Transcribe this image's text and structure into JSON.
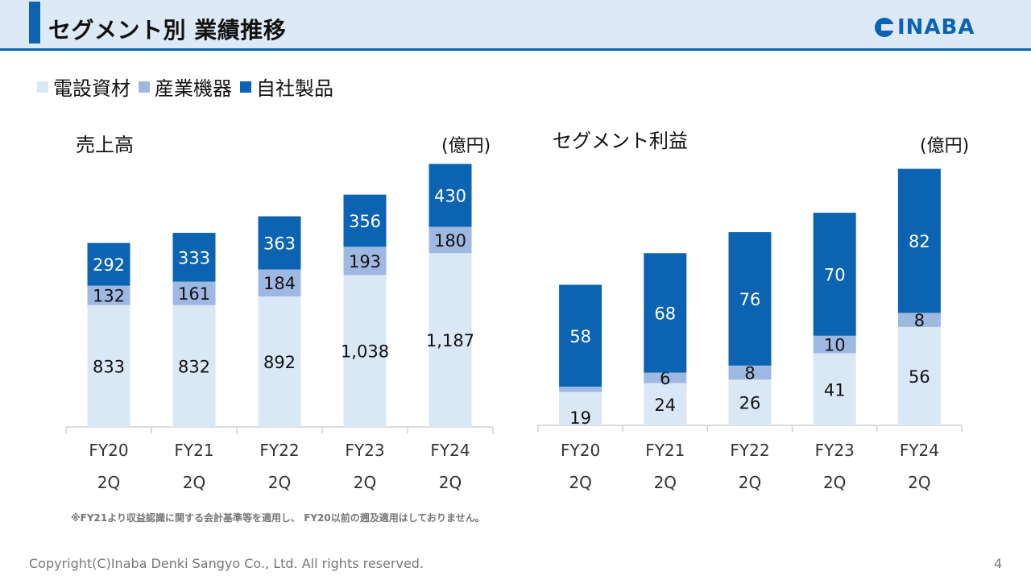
{
  "header": {
    "title": "セグメント別 業績推移",
    "logo_text": "INABA"
  },
  "legend": [
    {
      "label": "電設資材",
      "color": "#dae8f6"
    },
    {
      "label": "産業機器",
      "color": "#9fb8e2"
    },
    {
      "label": "自社製品",
      "color": "#0b63b1"
    }
  ],
  "chart_data": [
    {
      "type": "bar",
      "stacked": true,
      "title": "売上高",
      "unit": "(億円)",
      "categories": [
        "FY20\n2Q",
        "FY21\n2Q",
        "FY22\n2Q",
        "FY23\n2Q",
        "FY24\n2Q"
      ],
      "series": [
        {
          "name": "電設資材",
          "values": [
            833,
            832,
            892,
            1038,
            1187
          ],
          "labels": [
            "833",
            "832",
            "892",
            "1,038",
            "1,187"
          ]
        },
        {
          "name": "産業機器",
          "values": [
            132,
            161,
            184,
            193,
            180
          ],
          "labels": [
            "132",
            "161",
            "184",
            "193",
            "180"
          ]
        },
        {
          "name": "自社製品",
          "values": [
            292,
            333,
            363,
            356,
            430
          ],
          "labels": [
            "292",
            "333",
            "363",
            "356",
            "430"
          ]
        }
      ]
    },
    {
      "type": "bar",
      "stacked": true,
      "title": "セグメント利益",
      "unit": "(億円)",
      "categories": [
        "FY20\n2Q",
        "FY21\n2Q",
        "FY22\n2Q",
        "FY23\n2Q",
        "FY24\n2Q"
      ],
      "series": [
        {
          "name": "電設資材",
          "values": [
            19,
            24,
            26,
            41,
            56
          ],
          "labels": [
            "19",
            "24",
            "26",
            "41",
            "56"
          ]
        },
        {
          "name": "産業機器",
          "values": [
            3,
            6,
            8,
            10,
            8
          ],
          "labels": [
            "3",
            "6",
            "8",
            "10",
            "8"
          ]
        },
        {
          "name": "自社製品",
          "values": [
            58,
            68,
            76,
            70,
            82
          ],
          "labels": [
            "58",
            "68",
            "76",
            "70",
            "82"
          ]
        }
      ]
    }
  ],
  "footnote": "※FY21より収益認識に関する会計基準等を適用し、 FY20以前の遡及適用はしておりません。",
  "copyright": "Copyright(C)Inaba Denki Sangyo Co., Ltd. All rights reserved.",
  "page_number": "4"
}
